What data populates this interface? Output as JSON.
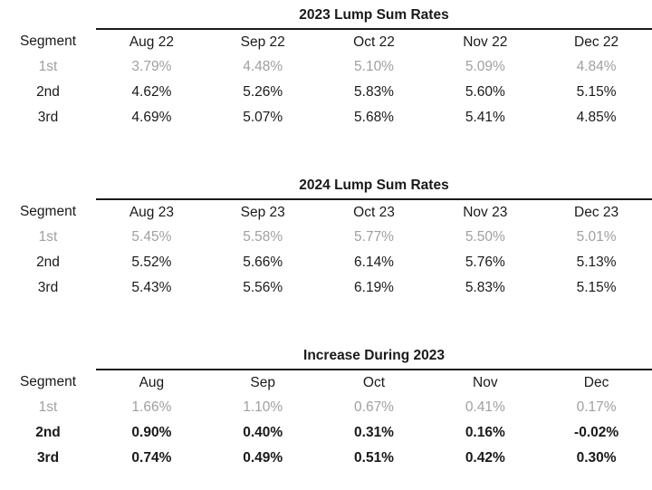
{
  "page": {
    "background_color": "#ffffff",
    "text_color": "#1a1a1a",
    "muted_row_color": "#a0a0a0",
    "rule_color": "#1a1a1a"
  },
  "tables": [
    {
      "title": "2023 Lump Sum Rates",
      "segment_header": "Segment",
      "month_headers": [
        "Aug 22",
        "Sep 22",
        "Oct 22",
        "Nov 22",
        "Dec 22"
      ],
      "rows": [
        {
          "segment": "1st",
          "style": "muted",
          "values": [
            "3.79%",
            "4.48%",
            "5.10%",
            "5.09%",
            "4.84%"
          ]
        },
        {
          "segment": "2nd",
          "style": "normal",
          "values": [
            "4.62%",
            "5.26%",
            "5.83%",
            "5.60%",
            "5.15%"
          ]
        },
        {
          "segment": "3rd",
          "style": "normal",
          "values": [
            "4.69%",
            "5.07%",
            "5.68%",
            "5.41%",
            "4.85%"
          ]
        }
      ]
    },
    {
      "title": "2024 Lump Sum Rates",
      "segment_header": "Segment",
      "month_headers": [
        "Aug 23",
        "Sep 23",
        "Oct 23",
        "Nov 23",
        "Dec 23"
      ],
      "rows": [
        {
          "segment": "1st",
          "style": "muted",
          "values": [
            "5.45%",
            "5.58%",
            "5.77%",
            "5.50%",
            "5.01%"
          ]
        },
        {
          "segment": "2nd",
          "style": "normal",
          "values": [
            "5.52%",
            "5.66%",
            "6.14%",
            "5.76%",
            "5.13%"
          ]
        },
        {
          "segment": "3rd",
          "style": "normal",
          "values": [
            "5.43%",
            "5.56%",
            "6.19%",
            "5.83%",
            "5.15%"
          ]
        }
      ]
    },
    {
      "title": "Increase During 2023",
      "segment_header": "Segment",
      "month_headers": [
        "Aug",
        "Sep",
        "Oct",
        "Nov",
        "Dec"
      ],
      "rows": [
        {
          "segment": "1st",
          "style": "muted",
          "values": [
            "1.66%",
            "1.10%",
            "0.67%",
            "0.41%",
            "0.17%"
          ]
        },
        {
          "segment": "2nd",
          "style": "bold",
          "values": [
            "0.90%",
            "0.40%",
            "0.31%",
            "0.16%",
            "-0.02%"
          ]
        },
        {
          "segment": "3rd",
          "style": "bold",
          "values": [
            "0.74%",
            "0.49%",
            "0.51%",
            "0.42%",
            "0.30%"
          ]
        }
      ]
    }
  ]
}
